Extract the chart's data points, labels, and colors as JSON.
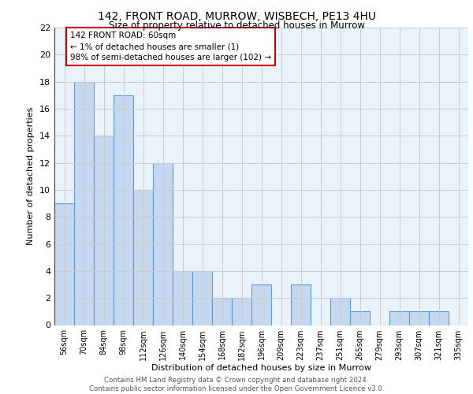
{
  "title": "142, FRONT ROAD, MURROW, WISBECH, PE13 4HU",
  "subtitle": "Size of property relative to detached houses in Murrow",
  "xlabel": "Distribution of detached houses by size in Murrow",
  "ylabel": "Number of detached properties",
  "categories": [
    "56sqm",
    "70sqm",
    "84sqm",
    "98sqm",
    "112sqm",
    "126sqm",
    "140sqm",
    "154sqm",
    "168sqm",
    "182sqm",
    "196sqm",
    "209sqm",
    "223sqm",
    "237sqm",
    "251sqm",
    "265sqm",
    "279sqm",
    "293sqm",
    "307sqm",
    "321sqm",
    "335sqm"
  ],
  "values": [
    9,
    18,
    14,
    17,
    10,
    12,
    4,
    4,
    2,
    2,
    3,
    0,
    3,
    0,
    2,
    1,
    0,
    1,
    1,
    1,
    0
  ],
  "bar_color": "#c5d8f0",
  "bar_edge_color": "#5a9bd5",
  "highlight_color": "#cc0000",
  "annotation_text": "142 FRONT ROAD: 60sqm\n← 1% of detached houses are smaller (1)\n98% of semi-detached houses are larger (102) →",
  "annotation_box_color": "#ffffff",
  "annotation_box_edge": "#cc0000",
  "ylim": [
    0,
    22
  ],
  "yticks": [
    0,
    2,
    4,
    6,
    8,
    10,
    12,
    14,
    16,
    18,
    20,
    22
  ],
  "grid_color": "#cccccc",
  "background_color": "#eaf3fb",
  "footer_line1": "Contains HM Land Registry data © Crown copyright and database right 2024.",
  "footer_line2": "Contains public sector information licensed under the Open Government Licence v3.0."
}
